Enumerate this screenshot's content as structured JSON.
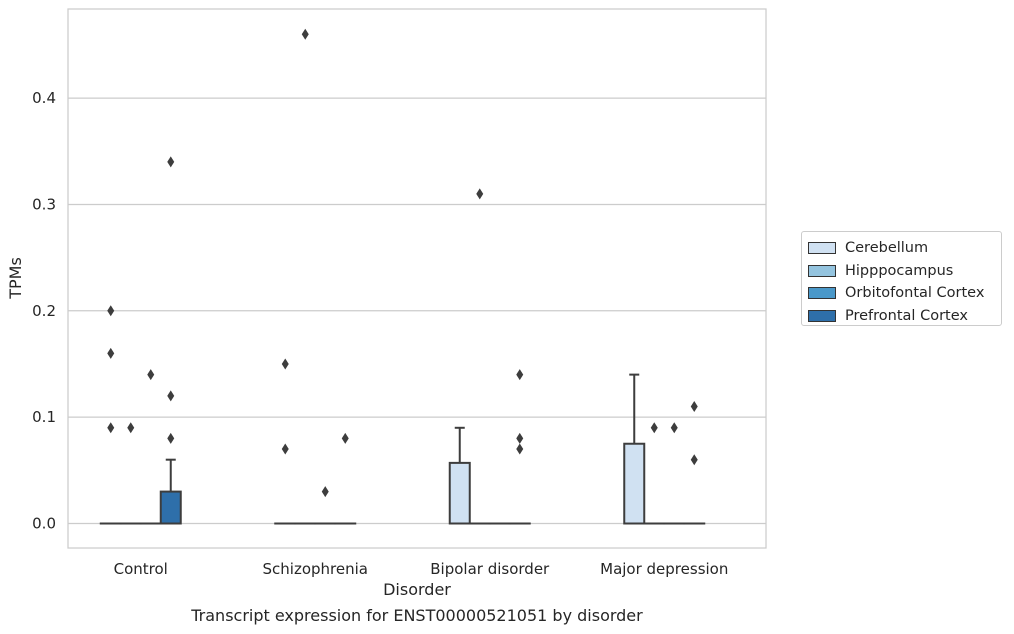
{
  "chart_data": {
    "type": "box",
    "title": "",
    "caption": "Transcript expression for ENST00000521051 by disorder",
    "xlabel": "Disorder",
    "ylabel": "TPMs",
    "ylim": [
      -0.023,
      0.484
    ],
    "yticks": [
      "0.0",
      "0.1",
      "0.2",
      "0.3",
      "0.4"
    ],
    "categories": [
      "Control",
      "Schizophrenia",
      "Bipolar disorder",
      "Major depression"
    ],
    "grid": "horizontal",
    "legend_position": "right",
    "series": [
      {
        "name": "Cerebellum",
        "color": "#d0e1f2",
        "boxes": [
          {
            "q1": 0,
            "median": 0,
            "q3": 0,
            "whislo": 0,
            "whishi": 0,
            "fliers": [
              0.09,
              0.16,
              0.2
            ]
          },
          {
            "q1": 0,
            "median": 0,
            "q3": 0,
            "whislo": 0,
            "whishi": 0,
            "fliers": [
              0.07,
              0.15
            ]
          },
          {
            "q1": 0,
            "median": 0,
            "q3": 0.057,
            "whislo": 0,
            "whishi": 0.09,
            "fliers": []
          },
          {
            "q1": 0,
            "median": 0,
            "q3": 0.075,
            "whislo": 0,
            "whishi": 0.14,
            "fliers": []
          }
        ]
      },
      {
        "name": "Hipppocampus",
        "color": "#94c4df",
        "boxes": [
          {
            "q1": 0,
            "median": 0,
            "q3": 0,
            "whislo": 0,
            "whishi": 0,
            "fliers": [
              0.09
            ]
          },
          {
            "q1": 0,
            "median": 0,
            "q3": 0,
            "whislo": 0,
            "whishi": 0,
            "fliers": [
              0.46
            ]
          },
          {
            "q1": 0,
            "median": 0,
            "q3": 0,
            "whislo": 0,
            "whishi": 0,
            "fliers": [
              0.31
            ]
          },
          {
            "q1": 0,
            "median": 0,
            "q3": 0,
            "whislo": 0,
            "whishi": 0,
            "fliers": [
              0.09
            ]
          }
        ]
      },
      {
        "name": "Orbitofontal Cortex",
        "color": "#4a98c9",
        "boxes": [
          {
            "q1": 0,
            "median": 0,
            "q3": 0,
            "whislo": 0,
            "whishi": 0,
            "fliers": [
              0.14
            ]
          },
          {
            "q1": 0,
            "median": 0,
            "q3": 0,
            "whislo": 0,
            "whishi": 0,
            "fliers": [
              0.03
            ]
          },
          {
            "q1": 0,
            "median": 0,
            "q3": 0,
            "whislo": 0,
            "whishi": 0,
            "fliers": []
          },
          {
            "q1": 0,
            "median": 0,
            "q3": 0,
            "whislo": 0,
            "whishi": 0,
            "fliers": [
              0.09
            ]
          }
        ]
      },
      {
        "name": "Prefrontal Cortex",
        "color": "#2e6faa",
        "boxes": [
          {
            "q1": 0,
            "median": 0,
            "q3": 0.03,
            "whislo": 0,
            "whishi": 0.06,
            "fliers": [
              0.08,
              0.12,
              0.34
            ]
          },
          {
            "q1": 0,
            "median": 0,
            "q3": 0,
            "whislo": 0,
            "whishi": 0,
            "fliers": [
              0.08
            ]
          },
          {
            "q1": 0,
            "median": 0,
            "q3": 0,
            "whislo": 0,
            "whishi": 0,
            "fliers": [
              0.07,
              0.08,
              0.14
            ]
          },
          {
            "q1": 0,
            "median": 0,
            "q3": 0,
            "whislo": 0,
            "whishi": 0,
            "fliers": [
              0.06,
              0.11
            ]
          }
        ]
      }
    ]
  }
}
